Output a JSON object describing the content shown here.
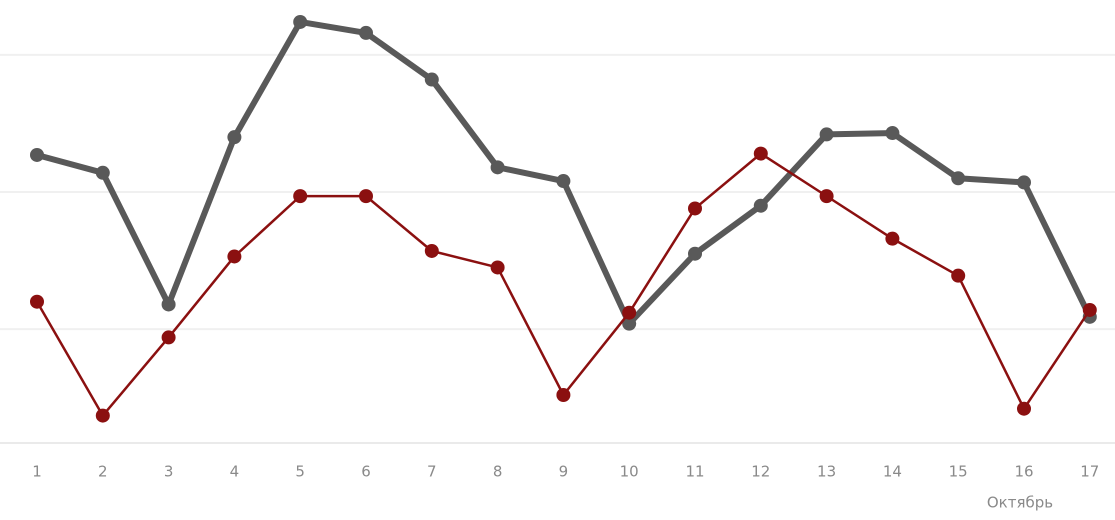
{
  "chart_data": {
    "type": "line",
    "categories": [
      "1",
      "2",
      "3",
      "4",
      "5",
      "6",
      "7",
      "8",
      "9",
      "10",
      "11",
      "12",
      "13",
      "14",
      "15",
      "16",
      "17"
    ],
    "series": [
      {
        "color": "#595959",
        "values": [
          22.7,
          21.4,
          11.8,
          24.0,
          32.4,
          31.6,
          28.2,
          21.8,
          20.8,
          10.4,
          15.5,
          19.0,
          24.2,
          24.3,
          21.0,
          20.7,
          10.9
        ]
      },
      {
        "color": "#8b1010",
        "values": [
          12.0,
          3.7,
          9.4,
          15.3,
          19.7,
          19.7,
          15.7,
          14.5,
          5.2,
          11.2,
          18.8,
          22.8,
          19.7,
          16.6,
          13.9,
          4.2,
          11.4
        ]
      }
    ],
    "annotation": "Октябрь",
    "ylim": [
      1.7,
      34
    ],
    "yticks": [
      10,
      20,
      30
    ],
    "grid": true
  }
}
